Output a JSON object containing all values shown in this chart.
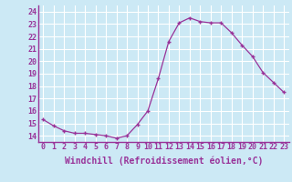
{
  "x": [
    0,
    1,
    2,
    3,
    4,
    5,
    6,
    7,
    8,
    9,
    10,
    11,
    12,
    13,
    14,
    15,
    16,
    17,
    18,
    19,
    20,
    21,
    22,
    23
  ],
  "y": [
    15.3,
    14.8,
    14.4,
    14.2,
    14.2,
    14.1,
    14.0,
    13.8,
    14.0,
    14.9,
    16.0,
    18.6,
    21.6,
    23.1,
    23.5,
    23.2,
    23.1,
    23.1,
    22.3,
    21.3,
    20.4,
    19.1,
    18.3,
    17.5
  ],
  "line_color": "#993399",
  "marker": "+",
  "marker_size": 3,
  "xlabel": "Windchill (Refroidissement éolien,°C)",
  "xlabel_fontsize": 7,
  "ylabel_ticks": [
    14,
    15,
    16,
    17,
    18,
    19,
    20,
    21,
    22,
    23,
    24
  ],
  "xlim": [
    -0.5,
    23.5
  ],
  "ylim": [
    13.5,
    24.5
  ],
  "bg_color": "#cce9f5",
  "grid_color": "#ffffff",
  "tick_fontsize": 6,
  "spine_color": "#993399",
  "xlabel_color": "#993399"
}
